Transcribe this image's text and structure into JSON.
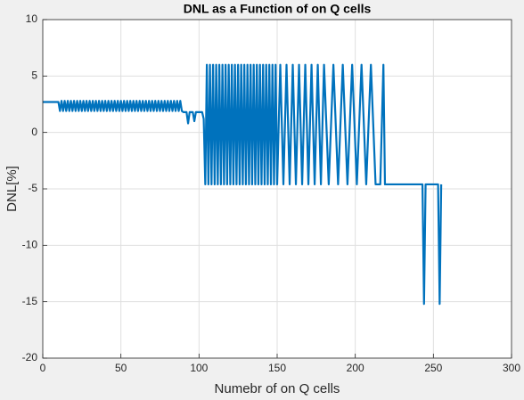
{
  "chart_data": {
    "type": "line",
    "title": "DNL as a Function of on Q cells",
    "xlabel": "Numebr of on Q cells",
    "ylabel": "DNL[%]",
    "xlim": [
      0,
      300
    ],
    "xticks": [
      0,
      50,
      100,
      150,
      200,
      250,
      300
    ],
    "ylim": [
      -20,
      10
    ],
    "yticks": [
      -20,
      -15,
      -10,
      -5,
      0,
      5,
      10
    ],
    "grid": true,
    "series": [
      {
        "color": "#0072bd",
        "x": [
          0,
          10,
          11,
          12,
          13,
          14,
          15,
          16,
          17,
          18,
          19,
          20,
          21,
          22,
          23,
          24,
          25,
          26,
          27,
          28,
          29,
          30,
          31,
          32,
          33,
          34,
          35,
          36,
          37,
          38,
          39,
          40,
          41,
          42,
          43,
          44,
          45,
          46,
          47,
          48,
          49,
          50,
          51,
          52,
          53,
          54,
          55,
          56,
          57,
          58,
          59,
          60,
          61,
          62,
          63,
          64,
          65,
          66,
          67,
          68,
          69,
          70,
          71,
          72,
          73,
          74,
          75,
          76,
          77,
          78,
          79,
          80,
          81,
          82,
          83,
          84,
          85,
          86,
          87,
          88,
          89,
          90,
          92,
          93,
          94,
          96,
          97,
          98,
          102,
          103,
          104,
          105,
          106,
          107,
          108,
          109,
          110,
          111,
          112,
          113,
          114,
          115,
          116,
          117,
          118,
          119,
          120,
          121,
          122,
          123,
          124,
          125,
          126,
          127,
          128,
          129,
          130,
          131,
          132,
          133,
          134,
          135,
          136,
          137,
          138,
          139,
          140,
          141,
          142,
          143,
          144,
          145,
          146,
          147,
          148,
          149,
          150,
          152,
          154,
          156,
          158,
          160,
          162,
          164,
          166,
          168,
          170,
          172,
          174,
          176,
          178,
          180,
          183,
          186,
          189,
          192,
          195,
          198,
          201,
          204,
          207,
          210,
          213,
          216,
          218,
          219,
          243,
          244,
          245,
          253,
          254,
          255
        ],
        "values": [
          2.7,
          2.7,
          1.9,
          2.8,
          1.9,
          2.8,
          1.9,
          2.8,
          1.9,
          2.8,
          1.9,
          2.8,
          1.9,
          2.8,
          1.9,
          2.8,
          1.9,
          2.8,
          1.9,
          2.8,
          1.9,
          2.8,
          1.9,
          2.8,
          1.9,
          2.8,
          1.9,
          2.8,
          1.9,
          2.8,
          1.9,
          2.8,
          1.9,
          2.8,
          1.9,
          2.8,
          1.9,
          2.8,
          1.9,
          2.8,
          1.9,
          2.8,
          1.9,
          2.8,
          1.9,
          2.8,
          1.9,
          2.8,
          1.9,
          2.8,
          1.9,
          2.8,
          1.9,
          2.8,
          1.9,
          2.8,
          1.9,
          2.8,
          1.9,
          2.8,
          1.9,
          2.8,
          1.9,
          2.8,
          1.9,
          2.8,
          1.9,
          2.8,
          1.9,
          2.8,
          1.9,
          2.8,
          1.9,
          2.8,
          1.9,
          2.8,
          1.9,
          2.8,
          1.9,
          2.8,
          1.9,
          1.8,
          1.8,
          0.8,
          1.8,
          1.8,
          1.0,
          1.8,
          1.8,
          1.2,
          -4.6,
          6,
          -4.6,
          6,
          -4.6,
          6,
          -4.6,
          6,
          -4.6,
          6,
          -4.6,
          6,
          -4.6,
          6,
          -4.6,
          6,
          -4.6,
          6,
          -4.6,
          6,
          -4.6,
          6,
          -4.6,
          6,
          -4.6,
          6,
          -4.6,
          6,
          -4.6,
          6,
          -4.6,
          6,
          -4.6,
          6,
          -4.6,
          6,
          -4.6,
          6,
          -4.6,
          6,
          -4.6,
          6,
          -4.6,
          6,
          -4.6,
          6,
          -4.6,
          6,
          -4.6,
          6,
          -4.6,
          6,
          -4.6,
          6,
          -4.6,
          6,
          -4.6,
          6,
          -4.6,
          6,
          -4.6,
          6,
          -4.6,
          6,
          -4.6,
          6,
          -4.6,
          6,
          -4.6,
          6,
          -4.6,
          6,
          -4.6,
          -4.6,
          6,
          -4.6,
          -4.6,
          -15.2,
          -4.6,
          -4.6,
          -15.2,
          -4.6
        ]
      }
    ]
  }
}
